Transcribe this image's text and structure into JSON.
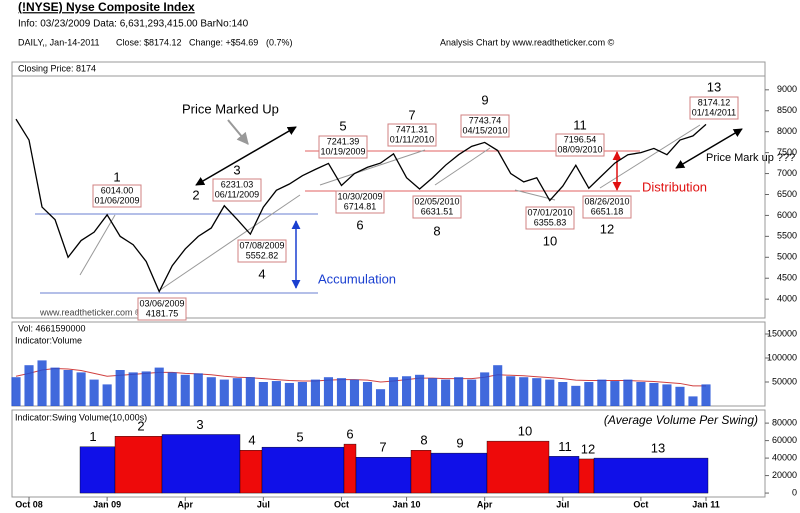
{
  "header": {
    "title": "(!NYSE) Nyse Composite Index",
    "info": "Info: 03/23/2009 Data: 6,631,293,415.00 BarNo:140",
    "daily": "DAILY,, Jan-14-2011",
    "close": "Close: $8174.12",
    "change": "Change: +$54.69",
    "change_pct": "(0.7%)",
    "credit": "Analysis Chart by www.readtheticker.com ©"
  },
  "annotations": {
    "price_marked_up": "Price Marked Up",
    "accumulation": "Accumulation",
    "distribution": "Distribution",
    "price_mark_up": "Price Mark up ???",
    "watermark": "www.readtheticker.com © (15,3,8,3)"
  },
  "chart_data": [
    {
      "type": "line",
      "categories": [
        null,
        "Oct 08",
        null,
        null,
        null,
        null,
        null,
        "Jan 09",
        null,
        null,
        null,
        null,
        null,
        "Apr",
        null,
        null,
        null,
        null,
        null,
        "Jul",
        null,
        null,
        null,
        null,
        null,
        "Oct",
        null,
        null,
        null,
        null,
        "Jan 10",
        null,
        null,
        null,
        null,
        null,
        "Apr",
        null,
        null,
        null,
        null,
        null,
        "Jul",
        null,
        null,
        null,
        null,
        null,
        "Oct",
        null,
        null,
        null,
        null,
        "Jan 11"
      ],
      "series": [
        {
          "name": "Closing Price: 8174",
          "color": "#000000",
          "values": [
            8300,
            7800,
            6200,
            5900,
            5000,
            5400,
            5600,
            6014,
            5500,
            5300,
            4900,
            4181.75,
            4800,
            5200,
            5500,
            5700,
            6231.03,
            5900,
            5552.82,
            6200,
            6600,
            6750,
            6950,
            7100,
            7241.39,
            6714.81,
            7000,
            7150,
            7250,
            7471.31,
            6900,
            6631.51,
            6900,
            7200,
            7450,
            7650,
            7743.74,
            7550,
            7000,
            6800,
            6900,
            6355.83,
            6700,
            7196.54,
            6651.18,
            6950,
            7250,
            7450,
            7500,
            7600,
            7450,
            7800,
            7900,
            8174.12
          ]
        }
      ],
      "ylim": [
        3550,
        9330
      ],
      "yticks": [
        4000,
        4500,
        5000,
        5500,
        6000,
        6500,
        7000,
        7500,
        8000,
        8500,
        9000
      ],
      "pivots": [
        {
          "number": "1",
          "date": "01/06/2009",
          "price": "6014.00"
        },
        {
          "number": "2",
          "date": "03/06/2009",
          "price": "4181.75"
        },
        {
          "number": "3",
          "date": "06/11/2009",
          "price": "6231.03"
        },
        {
          "number": "4",
          "date": "07/08/2009",
          "price": "5552.82"
        },
        {
          "number": "5",
          "date": "10/19/2009",
          "price": "7241.39"
        },
        {
          "number": "6",
          "date": "10/30/2009",
          "price": "6714.81"
        },
        {
          "number": "7",
          "date": "01/11/2010",
          "price": "7471.31"
        },
        {
          "number": "8",
          "date": "02/05/2010",
          "price": "6631.51"
        },
        {
          "number": "9",
          "date": "04/15/2010",
          "price": "7743.74"
        },
        {
          "number": "10",
          "date": "07/01/2010",
          "price": "6355.83"
        },
        {
          "number": "11",
          "date": "08/09/2010",
          "price": "7196.54"
        },
        {
          "number": "12",
          "date": "08/26/2010",
          "price": "6651.18"
        },
        {
          "number": "13",
          "date": "01/14/2011",
          "price": "8174.12"
        }
      ]
    },
    {
      "type": "bar",
      "title": "Indicator:Volume",
      "series": [
        {
          "name": "Vol: 4661590000",
          "color": "#1f4fd6",
          "values": [
            60000,
            85000,
            95000,
            80000,
            75000,
            70000,
            55000,
            45000,
            75000,
            70000,
            72000,
            80000,
            70000,
            65000,
            68000,
            60000,
            55000,
            58000,
            60000,
            50000,
            52000,
            48000,
            50000,
            55000,
            60000,
            58000,
            55000,
            50000,
            35000,
            60000,
            62000,
            65000,
            58000,
            55000,
            60000,
            55000,
            70000,
            85000,
            62000,
            60000,
            58000,
            55000,
            50000,
            42000,
            50000,
            55000,
            52000,
            55000,
            50000,
            48000,
            45000,
            40000,
            20000,
            45000
          ]
        },
        {
          "color": "#f2a7a7",
          "values": [
            62000,
            68000,
            75000,
            78000,
            77000,
            74000,
            68000,
            62000,
            64000,
            66000,
            68000,
            70000,
            70000,
            68000,
            67000,
            65000,
            62000,
            60000,
            59000,
            57000,
            55000,
            53000,
            52000,
            52000,
            54000,
            55000,
            55000,
            54000,
            50000,
            52000,
            55000,
            58000,
            58000,
            57000,
            57000,
            57000,
            60000,
            65000,
            64000,
            63000,
            61000,
            59000,
            57000,
            54000,
            53000,
            53000,
            53000,
            53000,
            52000,
            51000,
            49000,
            47000,
            42000,
            42000
          ]
        }
      ],
      "ylim": [
        0,
        175000
      ],
      "yticks": [
        50000,
        100000,
        150000
      ]
    },
    {
      "type": "bar",
      "title": "Indicator:Swing Volume(10,000s)",
      "subtitle": "(Average Volume Per Swing)",
      "categories": [
        "1",
        "2",
        "3",
        "4",
        "5",
        "6",
        "7",
        "8",
        "9",
        "10",
        "11",
        "12",
        "13"
      ],
      "values": [
        53000,
        65000,
        67000,
        49000,
        52500,
        56000,
        41000,
        49000,
        45700,
        59400,
        42000,
        39000,
        40000
      ],
      "colors": [
        "#1010e8",
        "#ee0a0a",
        "#1010e8",
        "#ee0a0a",
        "#1010e8",
        "#ee0a0a",
        "#1010e8",
        "#ee0a0a",
        "#1010e8",
        "#ee0a0a",
        "#1010e8",
        "#ee0a0a",
        "#1010e8"
      ],
      "ylim": [
        -4500,
        95000
      ],
      "yticks": [
        0,
        20000,
        40000,
        60000,
        80000
      ]
    }
  ]
}
